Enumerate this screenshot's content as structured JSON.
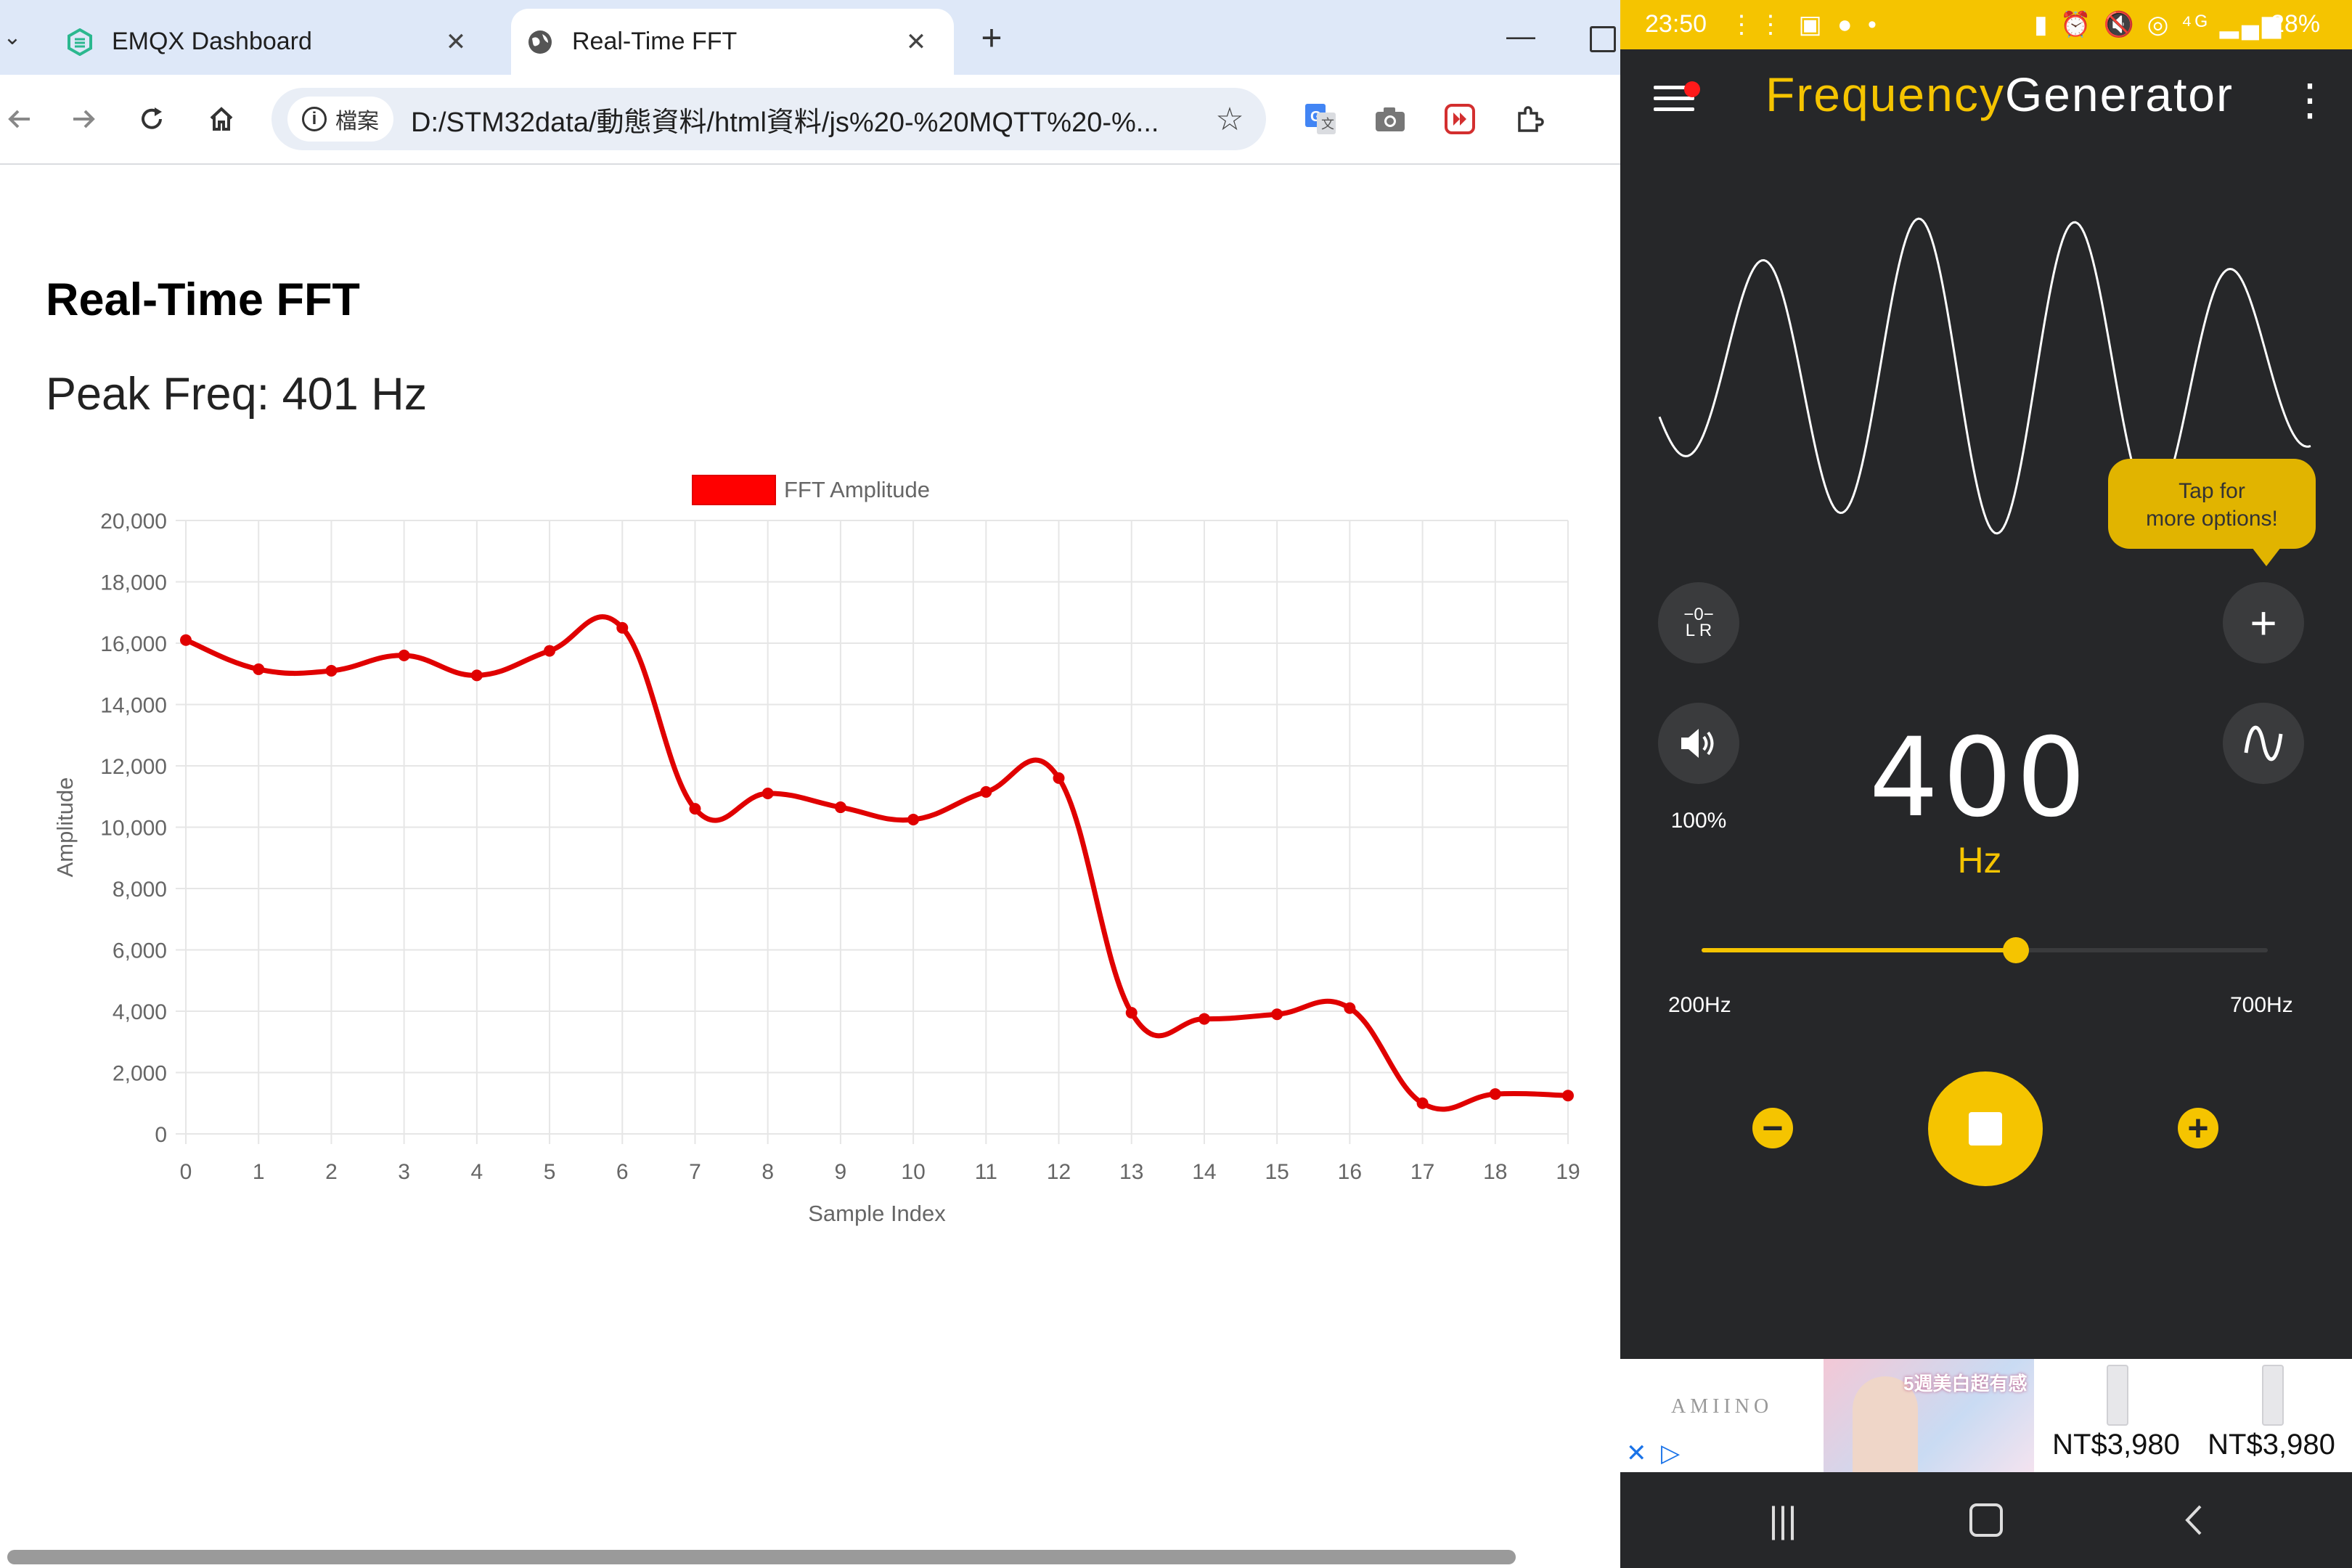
{
  "browser": {
    "tabs": [
      {
        "label": "EMQX Dashboard",
        "icon": "emqx-logo-icon",
        "active": false
      },
      {
        "label": "Real-Time FFT",
        "icon": "globe-icon",
        "active": true
      }
    ],
    "site_info_label": "檔案",
    "url": "D:/STM32data/動態資料/html資料/js%20-%20MQTT%20-%..."
  },
  "page": {
    "title": "Real-Time FFT",
    "peak_text": "Peak Freq: 401 Hz"
  },
  "chart_data": {
    "type": "line",
    "x": [
      0,
      1,
      2,
      3,
      4,
      5,
      6,
      7,
      8,
      9,
      10,
      11,
      12,
      13,
      14,
      15,
      16,
      17,
      18,
      19
    ],
    "series": [
      {
        "name": "FFT Amplitude",
        "color": "#e00000",
        "values": [
          16100,
          15150,
          15100,
          15600,
          14950,
          15750,
          16500,
          10600,
          11100,
          10650,
          10250,
          11150,
          11600,
          3950,
          3750,
          3900,
          4100,
          1000,
          1300,
          1250
        ]
      }
    ],
    "xlabel": "Sample Index",
    "ylabel": "Amplitude",
    "ylim": [
      0,
      20000
    ],
    "yticks": [
      "0",
      "2,000",
      "4,000",
      "6,000",
      "8,000",
      "10,000",
      "12,000",
      "14,000",
      "16,000",
      "18,000",
      "20,000"
    ],
    "xticks": [
      "0",
      "1",
      "2",
      "3",
      "4",
      "5",
      "6",
      "7",
      "8",
      "9",
      "10",
      "11",
      "12",
      "13",
      "14",
      "15",
      "16",
      "17",
      "18",
      "19"
    ],
    "legend_position": "top-center",
    "grid": true
  },
  "phone": {
    "status": {
      "time": "23:50",
      "battery": "28%"
    },
    "app_title_part1": "Frequency",
    "app_title_part2": "Generator",
    "tooltip_line1": "Tap for",
    "tooltip_line2": "more options!",
    "lr_label_top": "−0−",
    "lr_label_bottom": "L  R",
    "volume_percent": "100%",
    "frequency": "400",
    "unit": "Hz",
    "range_min": "200Hz",
    "range_max": "700Hz",
    "slider_fraction": 0.555,
    "ad": {
      "brand": "AMIINO",
      "caption": "5週美白超有感",
      "price1": "NT$3,980",
      "price2": "NT$3,980"
    }
  }
}
